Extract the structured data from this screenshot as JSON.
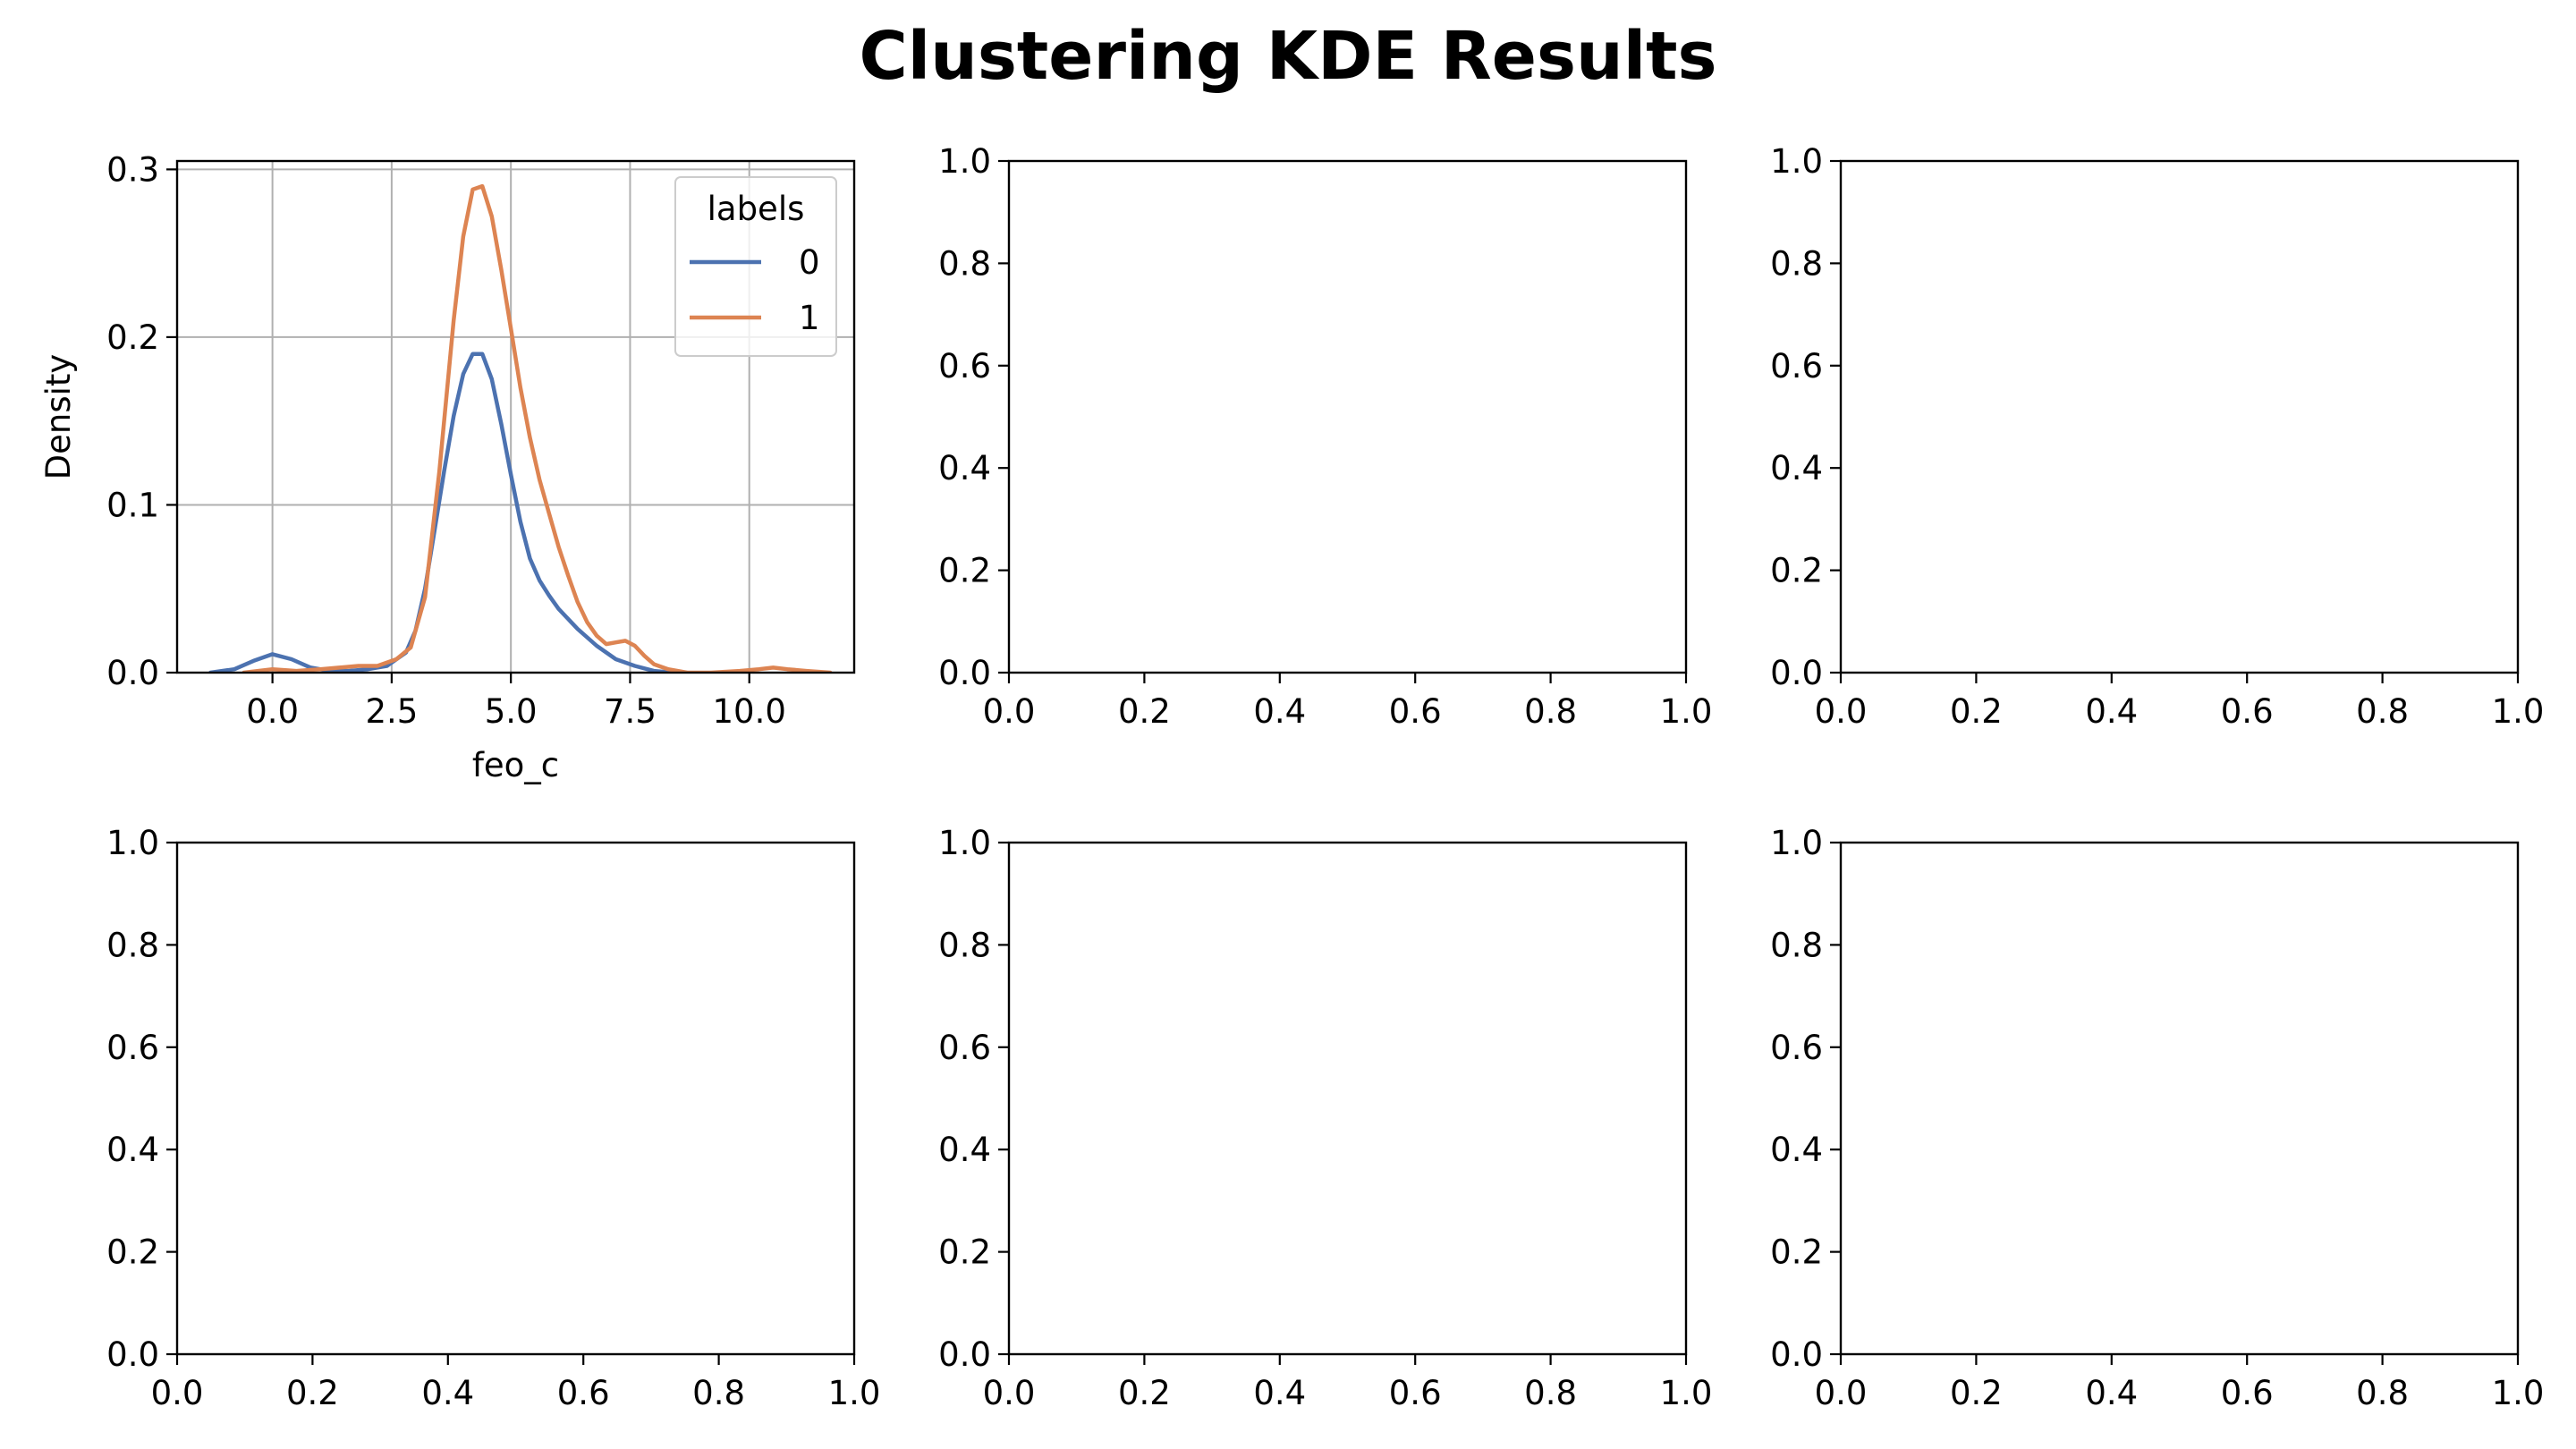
{
  "figure": {
    "title": "Clustering KDE Results"
  },
  "chart_data": [
    {
      "type": "line",
      "subplot": "row 1, col 1",
      "title": "",
      "xlabel": "feo_c",
      "ylabel": "Density",
      "xlim": [
        -2.0,
        12.2
      ],
      "ylim": [
        0.0,
        0.305
      ],
      "xticks": [
        0.0,
        2.5,
        5.0,
        7.5,
        10.0
      ],
      "xtick_labels": [
        "0.0",
        "2.5",
        "5.0",
        "7.5",
        "10.0"
      ],
      "yticks": [
        0.0,
        0.1,
        0.2,
        0.3
      ],
      "ytick_labels": [
        "0.0",
        "0.1",
        "0.2",
        "0.3"
      ],
      "grid": true,
      "legend": {
        "title": "labels",
        "placement": "top-right"
      },
      "series": [
        {
          "name": "0",
          "color": "#4c72b0",
          "x": [
            -1.3,
            -0.8,
            -0.4,
            0.0,
            0.4,
            0.8,
            1.2,
            1.6,
            2.0,
            2.4,
            2.8,
            3.0,
            3.2,
            3.4,
            3.6,
            3.8,
            4.0,
            4.2,
            4.4,
            4.6,
            4.8,
            5.0,
            5.2,
            5.4,
            5.6,
            5.8,
            6.0,
            6.4,
            6.8,
            7.2,
            7.6,
            8.0,
            8.4
          ],
          "y": [
            0.0,
            0.002,
            0.007,
            0.011,
            0.008,
            0.003,
            0.001,
            0.001,
            0.002,
            0.004,
            0.012,
            0.025,
            0.05,
            0.085,
            0.12,
            0.153,
            0.178,
            0.19,
            0.19,
            0.175,
            0.148,
            0.118,
            0.09,
            0.068,
            0.055,
            0.046,
            0.038,
            0.026,
            0.016,
            0.008,
            0.004,
            0.001,
            0.0
          ]
        },
        {
          "name": "1",
          "color": "#dd8452",
          "x": [
            -0.6,
            0.0,
            0.5,
            1.0,
            1.4,
            1.8,
            2.2,
            2.6,
            2.9,
            3.2,
            3.5,
            3.8,
            4.0,
            4.2,
            4.4,
            4.6,
            4.8,
            5.0,
            5.2,
            5.4,
            5.6,
            5.8,
            6.0,
            6.2,
            6.4,
            6.6,
            6.8,
            7.0,
            7.2,
            7.4,
            7.6,
            7.8,
            8.0,
            8.3,
            8.7,
            9.2,
            9.8,
            10.2,
            10.5,
            10.8,
            11.2,
            11.7
          ],
          "y": [
            0.0,
            0.002,
            0.001,
            0.002,
            0.003,
            0.004,
            0.004,
            0.008,
            0.015,
            0.045,
            0.12,
            0.21,
            0.26,
            0.288,
            0.29,
            0.272,
            0.24,
            0.205,
            0.17,
            0.14,
            0.115,
            0.095,
            0.075,
            0.058,
            0.042,
            0.03,
            0.022,
            0.017,
            0.018,
            0.019,
            0.016,
            0.01,
            0.005,
            0.002,
            0.0,
            0.0,
            0.001,
            0.002,
            0.003,
            0.002,
            0.001,
            0.0
          ]
        }
      ]
    },
    {
      "type": "line",
      "subplot": "row 1, col 2",
      "empty": true,
      "xlim": [
        0.0,
        1.0
      ],
      "ylim": [
        0.0,
        1.0
      ],
      "xtick_labels": [
        "0.0",
        "0.2",
        "0.4",
        "0.6",
        "0.8",
        "1.0"
      ],
      "ytick_labels": [
        "0.0",
        "0.2",
        "0.4",
        "0.6",
        "0.8",
        "1.0"
      ]
    },
    {
      "type": "line",
      "subplot": "row 1, col 3",
      "empty": true,
      "xlim": [
        0.0,
        1.0
      ],
      "ylim": [
        0.0,
        1.0
      ],
      "xtick_labels": [
        "0.0",
        "0.2",
        "0.4",
        "0.6",
        "0.8",
        "1.0"
      ],
      "ytick_labels": [
        "0.0",
        "0.2",
        "0.4",
        "0.6",
        "0.8",
        "1.0"
      ]
    },
    {
      "type": "line",
      "subplot": "row 2, col 1",
      "empty": true,
      "xlim": [
        0.0,
        1.0
      ],
      "ylim": [
        0.0,
        1.0
      ],
      "xtick_labels": [
        "0.0",
        "0.2",
        "0.4",
        "0.6",
        "0.8",
        "1.0"
      ],
      "ytick_labels": [
        "0.0",
        "0.2",
        "0.4",
        "0.6",
        "0.8",
        "1.0"
      ]
    },
    {
      "type": "line",
      "subplot": "row 2, col 2",
      "empty": true,
      "xlim": [
        0.0,
        1.0
      ],
      "ylim": [
        0.0,
        1.0
      ],
      "xtick_labels": [
        "0.0",
        "0.2",
        "0.4",
        "0.6",
        "0.8",
        "1.0"
      ],
      "ytick_labels": [
        "0.0",
        "0.2",
        "0.4",
        "0.6",
        "0.8",
        "1.0"
      ]
    },
    {
      "type": "line",
      "subplot": "row 2, col 3",
      "empty": true,
      "xlim": [
        0.0,
        1.0
      ],
      "ylim": [
        0.0,
        1.0
      ],
      "xtick_labels": [
        "0.0",
        "0.2",
        "0.4",
        "0.6",
        "0.8",
        "1.0"
      ],
      "ytick_labels": [
        "0.0",
        "0.2",
        "0.4",
        "0.6",
        "0.8",
        "1.0"
      ]
    }
  ]
}
